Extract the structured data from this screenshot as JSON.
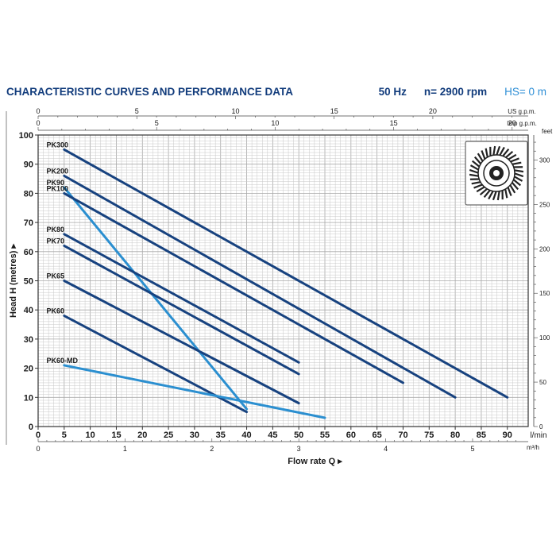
{
  "header": {
    "title": "CHARACTERISTIC CURVES AND PERFORMANCE DATA",
    "frequency": "50 Hz",
    "speed": "n= 2900 rpm",
    "suction_height": "HS= 0 m"
  },
  "colors": {
    "dark_curve": "#17427f",
    "light_curve": "#2b8fd0",
    "grid": "#c8c8c8",
    "text": "#1a1a1a",
    "header": "#123c7c"
  },
  "icon": "impeller-icon",
  "chart_data": {
    "type": "line",
    "xlabel": "Flow rate Q",
    "xunit": "l/min",
    "ylabel": "Head H (metres)",
    "xlim": [
      0,
      94
    ],
    "ylim": [
      0,
      100
    ],
    "x_ticks": [
      0,
      5,
      10,
      15,
      20,
      25,
      30,
      35,
      40,
      45,
      50,
      55,
      60,
      65,
      70,
      75,
      80,
      85,
      90
    ],
    "y_ticks": [
      0,
      10,
      20,
      30,
      40,
      50,
      60,
      70,
      80,
      90,
      100
    ],
    "secondary_axes": {
      "us_gpm": {
        "label": "US g.p.m.",
        "ticks": [
          0,
          5,
          10,
          15,
          20
        ]
      },
      "imp_gpm": {
        "label": "Imp g.p.m.",
        "ticks": [
          0,
          5,
          10,
          15,
          20
        ]
      },
      "m3h": {
        "label": "m³/h",
        "ticks": [
          0,
          1,
          2,
          3,
          4,
          5
        ]
      },
      "feet": {
        "label": "feet",
        "ticks": [
          0,
          50,
          100,
          150,
          200,
          250,
          300
        ]
      }
    },
    "series": [
      {
        "name": "PK300",
        "style": "dark",
        "x": [
          5,
          90
        ],
        "y": [
          95,
          10
        ]
      },
      {
        "name": "PK200",
        "style": "dark",
        "x": [
          5,
          80
        ],
        "y": [
          86,
          10
        ]
      },
      {
        "name": "PK90",
        "style": "light",
        "x": [
          5,
          40
        ],
        "y": [
          82,
          6
        ]
      },
      {
        "name": "PK100",
        "style": "dark",
        "x": [
          5,
          70
        ],
        "y": [
          80,
          15
        ]
      },
      {
        "name": "PK80",
        "style": "dark",
        "x": [
          5,
          50
        ],
        "y": [
          66,
          22
        ]
      },
      {
        "name": "PK70",
        "style": "dark",
        "x": [
          5,
          50
        ],
        "y": [
          62,
          18
        ]
      },
      {
        "name": "PK65",
        "style": "dark",
        "x": [
          5,
          50
        ],
        "y": [
          50,
          8
        ]
      },
      {
        "name": "PK60",
        "style": "dark",
        "x": [
          5,
          40
        ],
        "y": [
          38,
          5
        ]
      },
      {
        "name": "PK60-MD",
        "style": "light",
        "x": [
          5,
          55
        ],
        "y": [
          21,
          3
        ]
      }
    ]
  }
}
